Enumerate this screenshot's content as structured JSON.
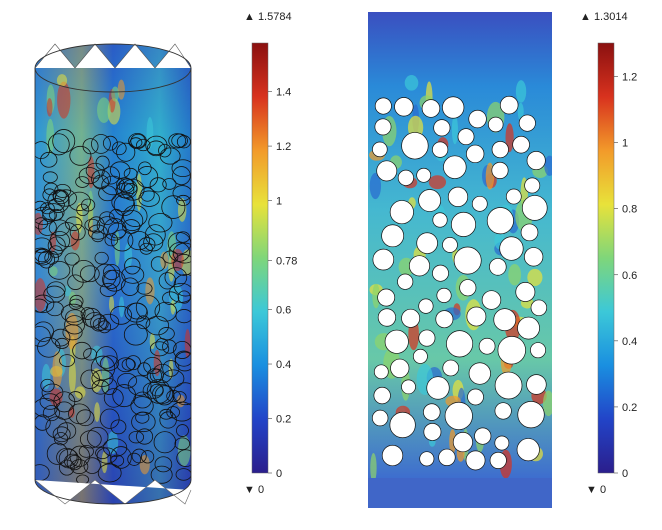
{
  "left_plot": {
    "colorbar": {
      "max_label": "▲ 1.5784",
      "min_label": "▼ 0",
      "ticks": [
        {
          "value": 1.4,
          "label": "1.4"
        },
        {
          "value": 1.2,
          "label": "1.2"
        },
        {
          "value": 1.0,
          "label": "1"
        },
        {
          "value": 0.78,
          "label": "0.78"
        },
        {
          "value": 0.6,
          "label": "0.6"
        },
        {
          "value": 0.4,
          "label": "0.4"
        },
        {
          "value": 0.2,
          "label": "0.2"
        },
        {
          "value": 0.0,
          "label": "0"
        }
      ],
      "range": [
        0,
        1.5784
      ]
    }
  },
  "right_plot": {
    "colorbar": {
      "max_label": "▲ 1.3014",
      "min_label": "▼ 0",
      "ticks": [
        {
          "value": 1.2,
          "label": "1.2"
        },
        {
          "value": 1.0,
          "label": "1"
        },
        {
          "value": 0.8,
          "label": "0.8"
        },
        {
          "value": 0.6,
          "label": "0.6"
        },
        {
          "value": 0.4,
          "label": "0.4"
        },
        {
          "value": 0.2,
          "label": "0.2"
        },
        {
          "value": 0.0,
          "label": "0"
        }
      ],
      "range": [
        0,
        1.3014
      ]
    }
  },
  "colormap": [
    "#2b1e8c",
    "#2244c8",
    "#1a8fe0",
    "#3cc8d8",
    "#7fd67a",
    "#e8e23a",
    "#f29a2a",
    "#d8321e",
    "#8a1010"
  ]
}
